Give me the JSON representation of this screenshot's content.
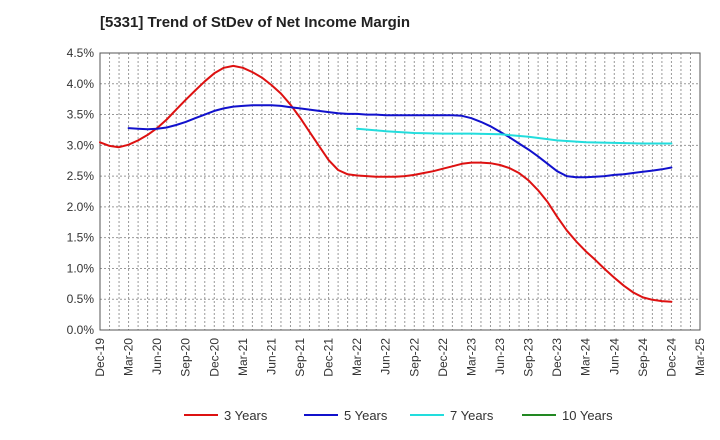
{
  "chart_data": {
    "type": "line",
    "title": "[5331]  Trend of StDev of Net Income Margin",
    "xlabel": "",
    "ylabel": "",
    "ylim": [
      0,
      4.5
    ],
    "y_ticks": [
      "0.0%",
      "0.5%",
      "1.0%",
      "1.5%",
      "2.0%",
      "2.5%",
      "3.0%",
      "3.5%",
      "4.0%",
      "4.5%"
    ],
    "x_ticks": [
      "Dec-19",
      "Mar-20",
      "Jun-20",
      "Sep-20",
      "Dec-20",
      "Mar-21",
      "Jun-21",
      "Sep-21",
      "Dec-21",
      "Mar-22",
      "Jun-22",
      "Sep-22",
      "Dec-22",
      "Mar-23",
      "Jun-23",
      "Sep-23",
      "Dec-23",
      "Mar-24",
      "Jun-24",
      "Sep-24",
      "Dec-24",
      "Mar-25"
    ],
    "grid": true,
    "legend_position": "bottom",
    "series": [
      {
        "name": "3 Years",
        "color": "#dd1111",
        "x": [
          "Dec-19",
          "Jan-20",
          "Feb-20",
          "Mar-20",
          "Apr-20",
          "May-20",
          "Jun-20",
          "Jul-20",
          "Aug-20",
          "Sep-20",
          "Oct-20",
          "Nov-20",
          "Dec-20",
          "Jan-21",
          "Feb-21",
          "Mar-21",
          "Apr-21",
          "May-21",
          "Jun-21",
          "Jul-21",
          "Aug-21",
          "Sep-21",
          "Oct-21",
          "Nov-21",
          "Dec-21",
          "Jan-22",
          "Feb-22",
          "Mar-22",
          "Apr-22",
          "May-22",
          "Jun-22",
          "Jul-22",
          "Aug-22",
          "Sep-22",
          "Oct-22",
          "Nov-22",
          "Dec-22",
          "Jan-23",
          "Feb-23",
          "Mar-23",
          "Apr-23",
          "May-23",
          "Jun-23",
          "Jul-23",
          "Aug-23",
          "Sep-23",
          "Oct-23",
          "Nov-23",
          "Dec-23",
          "Jan-24",
          "Feb-24",
          "Mar-24",
          "Apr-24",
          "May-24",
          "Jun-24",
          "Jul-24",
          "Aug-24",
          "Sep-24",
          "Oct-24",
          "Nov-24",
          "Dec-24"
        ],
        "values": [
          3.05,
          2.99,
          2.97,
          3.01,
          3.08,
          3.17,
          3.28,
          3.42,
          3.58,
          3.74,
          3.89,
          4.04,
          4.17,
          4.26,
          4.29,
          4.26,
          4.19,
          4.1,
          3.98,
          3.84,
          3.66,
          3.45,
          3.22,
          2.99,
          2.76,
          2.6,
          2.53,
          2.51,
          2.5,
          2.49,
          2.49,
          2.49,
          2.5,
          2.52,
          2.55,
          2.58,
          2.62,
          2.66,
          2.7,
          2.72,
          2.72,
          2.71,
          2.68,
          2.63,
          2.55,
          2.43,
          2.27,
          2.08,
          1.84,
          1.62,
          1.44,
          1.28,
          1.14,
          0.99,
          0.85,
          0.72,
          0.61,
          0.53,
          0.49,
          0.47,
          0.46
        ]
      },
      {
        "name": "5 Years",
        "color": "#1111cc",
        "x": [
          "Mar-20",
          "Apr-20",
          "May-20",
          "Jun-20",
          "Jul-20",
          "Aug-20",
          "Sep-20",
          "Oct-20",
          "Nov-20",
          "Dec-20",
          "Jan-21",
          "Feb-21",
          "Mar-21",
          "Apr-21",
          "May-21",
          "Jun-21",
          "Jul-21",
          "Aug-21",
          "Sep-21",
          "Oct-21",
          "Nov-21",
          "Dec-21",
          "Jan-22",
          "Feb-22",
          "Mar-22",
          "Apr-22",
          "May-22",
          "Jun-22",
          "Jul-22",
          "Aug-22",
          "Sep-22",
          "Oct-22",
          "Nov-22",
          "Dec-22",
          "Jan-23",
          "Feb-23",
          "Mar-23",
          "Apr-23",
          "May-23",
          "Jun-23",
          "Jul-23",
          "Aug-23",
          "Sep-23",
          "Oct-23",
          "Nov-23",
          "Dec-23",
          "Jan-24",
          "Feb-24",
          "Mar-24",
          "Apr-24",
          "May-24",
          "Jun-24",
          "Jul-24",
          "Aug-24",
          "Sep-24",
          "Oct-24",
          "Nov-24",
          "Dec-24"
        ],
        "values": [
          3.28,
          3.27,
          3.26,
          3.27,
          3.29,
          3.33,
          3.38,
          3.44,
          3.5,
          3.56,
          3.6,
          3.63,
          3.64,
          3.65,
          3.65,
          3.65,
          3.64,
          3.62,
          3.6,
          3.58,
          3.56,
          3.54,
          3.52,
          3.51,
          3.51,
          3.5,
          3.5,
          3.49,
          3.49,
          3.49,
          3.49,
          3.49,
          3.49,
          3.49,
          3.49,
          3.48,
          3.44,
          3.38,
          3.31,
          3.22,
          3.13,
          3.03,
          2.93,
          2.82,
          2.7,
          2.58,
          2.5,
          2.48,
          2.48,
          2.49,
          2.5,
          2.52,
          2.53,
          2.55,
          2.57,
          2.59,
          2.61,
          2.64
        ]
      },
      {
        "name": "7 Years",
        "color": "#22dddd",
        "x": [
          "Mar-22",
          "Jun-22",
          "Sep-22",
          "Dec-22",
          "Mar-23",
          "Jun-23",
          "Sep-23",
          "Dec-23",
          "Mar-24",
          "Jun-24",
          "Sep-24",
          "Dec-24"
        ],
        "values": [
          3.27,
          3.23,
          3.2,
          3.19,
          3.19,
          3.18,
          3.14,
          3.08,
          3.05,
          3.04,
          3.03,
          3.03
        ]
      },
      {
        "name": "10 Years",
        "color": "#228822",
        "x": [],
        "values": []
      }
    ]
  }
}
